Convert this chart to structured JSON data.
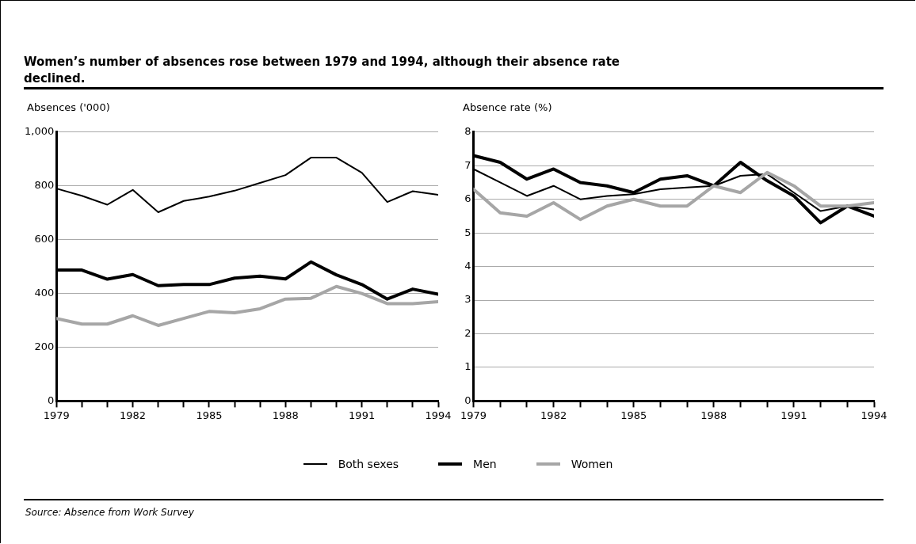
{
  "chart_data": [
    {
      "type": "line",
      "title": "Women’s number of absences rose between 1979 and 1994, although their absence rate declined.",
      "ylabel": "Absences ('000)",
      "x": [
        1979,
        1980,
        1981,
        1982,
        1983,
        1984,
        1985,
        1986,
        1987,
        1988,
        1989,
        1990,
        1991,
        1992,
        1993,
        1994
      ],
      "series": [
        {
          "name": "Both sexes",
          "color": "#000000",
          "values": [
            790,
            763,
            730,
            785,
            702,
            744,
            760,
            782,
            811,
            840,
            905,
            905,
            849,
            740,
            780,
            767
          ]
        },
        {
          "name": "Men",
          "color": "#000000",
          "values": [
            487,
            487,
            453,
            470,
            429,
            433,
            433,
            457,
            464,
            454,
            517,
            469,
            433,
            379,
            416,
            397
          ]
        },
        {
          "name": "Women",
          "color": "#a6a6a6",
          "values": [
            307,
            286,
            286,
            317,
            281,
            307,
            333,
            328,
            343,
            379,
            382,
            426,
            400,
            362,
            362,
            369
          ]
        }
      ],
      "xlim": [
        1979,
        1994
      ],
      "xticks": [
        1979,
        {
          "value": 1980,
          "label": null
        },
        {
          "value": 1981,
          "label": null
        },
        1982,
        {
          "value": 1983,
          "label": null
        },
        {
          "value": 1984,
          "label": null
        },
        1985,
        {
          "value": 1986,
          "label": null
        },
        {
          "value": 1987,
          "label": null
        },
        1988,
        {
          "value": 1989,
          "label": null
        },
        {
          "value": 1990,
          "label": null
        },
        1991,
        {
          "value": 1992,
          "label": null
        },
        {
          "value": 1993,
          "label": null
        },
        1994
      ],
      "ylim": [
        0,
        1000
      ],
      "yticks": [
        0,
        200,
        400,
        600,
        800,
        {
          "value": 1000,
          "label": "1,000"
        }
      ],
      "grid": "y",
      "legend": "bottom",
      "marker": "none",
      "line_style": "solid",
      "annotations": [
        "Source:  Absence from Work Survey"
      ]
    },
    {
      "type": "line",
      "ylabel": "Absence rate (%)",
      "x": [
        1979,
        1980,
        1981,
        1982,
        1983,
        1984,
        1985,
        1986,
        1987,
        1988,
        1989,
        1990,
        1991,
        1992,
        1993,
        1994
      ],
      "series": [
        {
          "name": "Both sexes",
          "color": "#000000",
          "values": [
            6.9,
            6.5,
            6.1,
            6.4,
            6.0,
            6.1,
            6.15,
            6.3,
            6.35,
            6.4,
            6.7,
            6.75,
            6.2,
            5.65,
            5.8,
            5.7
          ]
        },
        {
          "name": "Men",
          "color": "#000000",
          "values": [
            7.3,
            7.1,
            6.6,
            6.9,
            6.5,
            6.4,
            6.2,
            6.6,
            6.7,
            6.4,
            7.1,
            6.55,
            6.1,
            5.3,
            5.8,
            5.5
          ]
        },
        {
          "name": "Women",
          "color": "#a6a6a6",
          "values": [
            6.3,
            5.6,
            5.5,
            5.9,
            5.4,
            5.8,
            6.0,
            5.8,
            5.8,
            6.4,
            6.2,
            6.8,
            6.4,
            5.8,
            5.8,
            5.9
          ]
        }
      ],
      "xlim": [
        1979,
        1994
      ],
      "xticks": [
        1979,
        {
          "value": 1980,
          "label": null
        },
        {
          "value": 1981,
          "label": null
        },
        1982,
        {
          "value": 1983,
          "label": null
        },
        {
          "value": 1984,
          "label": null
        },
        1985,
        {
          "value": 1986,
          "label": null
        },
        {
          "value": 1987,
          "label": null
        },
        1988,
        {
          "value": 1989,
          "label": null
        },
        {
          "value": 1990,
          "label": null
        },
        1991,
        {
          "value": 1992,
          "label": null
        },
        {
          "value": 1993,
          "label": null
        },
        1994
      ],
      "ylim": [
        0,
        8
      ],
      "yticks": [
        0,
        1,
        2,
        3,
        4,
        5,
        6,
        7,
        8
      ],
      "grid": "y",
      "legend": "bottom",
      "marker": "none",
      "line_style": "solid"
    }
  ]
}
